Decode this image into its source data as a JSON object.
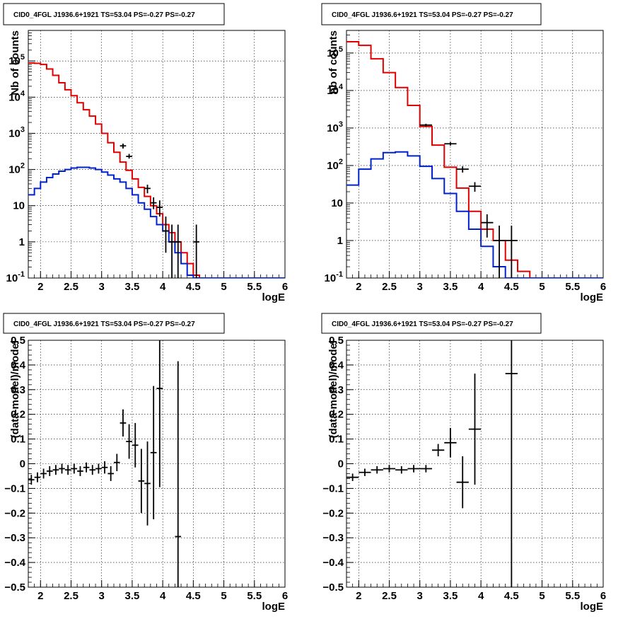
{
  "colors": {
    "data": "#000000",
    "model": "#e00000",
    "source": "#0022cc",
    "grid": "#000000"
  },
  "chart_data": [
    {
      "type": "line",
      "title": "CID0_4FGL J1936.6+1921 TS=53.04 PS=-0.27 PS=-0.27",
      "xlabel": "logE",
      "ylabel": "Nb of counts",
      "xlim": [
        1.8,
        6.0
      ],
      "ylim": [
        0.1,
        700000
      ],
      "yscale": "log",
      "grid": true,
      "xticks": [
        "2",
        "2.5",
        "3",
        "3.5",
        "4",
        "4.5",
        "5",
        "5.5",
        "6"
      ],
      "yticks": [
        "10^-1",
        "1",
        "10",
        "10^2",
        "10^3",
        "10^4",
        "10^5"
      ],
      "bin_edges": [
        1.8,
        1.9,
        2.0,
        2.1,
        2.2,
        2.3,
        2.4,
        2.5,
        2.6,
        2.7,
        2.8,
        2.9,
        3.0,
        3.1,
        3.2,
        3.3,
        3.4,
        3.5,
        3.6,
        3.7,
        3.8,
        3.9,
        4.0,
        4.1,
        4.2,
        4.3,
        4.4,
        4.5,
        4.6,
        4.7,
        4.8,
        4.9,
        5.0,
        5.1,
        5.2,
        5.3,
        5.4,
        5.5,
        5.6,
        5.7,
        5.8,
        5.9,
        6.0
      ],
      "series": [
        {
          "role": "model",
          "values": [
            88000,
            86000,
            80000,
            60000,
            40000,
            25000,
            16000,
            11000,
            7000,
            4500,
            3000,
            1800,
            1000,
            550,
            300,
            160,
            95,
            55,
            32,
            18,
            10,
            6,
            3,
            1.8,
            1,
            0.5,
            0.25,
            0.12,
            0.1,
            0.1,
            0.1,
            0.1,
            0.1,
            0.1,
            0.1,
            0.1,
            0.1,
            0.1,
            0.1,
            0.1,
            0.1,
            0.1
          ]
        },
        {
          "role": "source",
          "values": [
            20,
            30,
            45,
            60,
            75,
            90,
            100,
            110,
            115,
            115,
            110,
            100,
            85,
            70,
            55,
            45,
            30,
            20,
            12,
            8,
            5,
            3,
            2,
            1,
            0.5,
            0.25,
            0.12,
            0.1,
            0.1,
            0.1,
            0.1,
            0.1,
            0.1,
            0.1,
            0.1,
            0.1,
            0.1,
            0.1,
            0.1,
            0.1,
            0.1,
            0.1
          ]
        }
      ],
      "data_points": [
        {
          "x": 3.35,
          "y": 450,
          "ylo": 380,
          "yhi": 520
        },
        {
          "x": 3.45,
          "y": 230,
          "ylo": 200,
          "yhi": 270
        },
        {
          "x": 3.75,
          "y": 30,
          "ylo": 22,
          "yhi": 38
        },
        {
          "x": 3.85,
          "y": 12,
          "ylo": 8,
          "yhi": 17
        },
        {
          "x": 3.95,
          "y": 9,
          "ylo": 5,
          "yhi": 14
        },
        {
          "x": 4.05,
          "y": 2,
          "ylo": 0.5,
          "yhi": 5
        },
        {
          "x": 4.15,
          "y": 1,
          "ylo": 0.1,
          "yhi": 3
        },
        {
          "x": 4.25,
          "y": 1,
          "ylo": 0.1,
          "yhi": 3
        },
        {
          "x": 4.55,
          "y": 1,
          "ylo": 0.1,
          "yhi": 3
        }
      ]
    },
    {
      "type": "line",
      "title": "CID0_4FGL J1936.6+1921 TS=53.04 PS=-0.27 PS=-0.27",
      "xlabel": "logE",
      "ylabel": "nb of counts",
      "xlim": [
        1.8,
        6.0
      ],
      "ylim": [
        0.1,
        400000
      ],
      "yscale": "log",
      "grid": true,
      "xticks": [
        "2",
        "2.5",
        "3",
        "3.5",
        "4",
        "4.5",
        "5",
        "5.5",
        "6"
      ],
      "yticks": [
        "10^-1",
        "1",
        "10",
        "10^2",
        "10^3",
        "10^4",
        "10^5"
      ],
      "bin_edges": [
        1.8,
        2.0,
        2.2,
        2.4,
        2.6,
        2.8,
        3.0,
        3.2,
        3.4,
        3.6,
        3.8,
        4.0,
        4.2,
        4.4,
        4.6,
        4.8,
        5.0,
        5.2,
        5.4,
        5.6,
        5.8,
        6.0
      ],
      "series": [
        {
          "role": "model",
          "values": [
            200000,
            160000,
            70000,
            30000,
            12000,
            4000,
            1100,
            350,
            90,
            25,
            6,
            2,
            1,
            0.3,
            0.15,
            0.1,
            0.1,
            0.1,
            0.1,
            0.1,
            0.1
          ]
        },
        {
          "role": "source",
          "values": [
            30,
            80,
            150,
            220,
            230,
            180,
            95,
            45,
            18,
            6,
            2,
            0.7,
            0.2,
            0.1,
            0.1,
            0.1,
            0.1,
            0.1,
            0.1,
            0.1,
            0.1
          ]
        }
      ],
      "data_points": [
        {
          "x": 3.1,
          "y": 1200,
          "ylo": 1100,
          "yhi": 1300
        },
        {
          "x": 3.5,
          "y": 380,
          "ylo": 340,
          "yhi": 420
        },
        {
          "x": 3.7,
          "y": 80,
          "ylo": 65,
          "yhi": 95
        },
        {
          "x": 3.9,
          "y": 28,
          "ylo": 20,
          "yhi": 36
        },
        {
          "x": 4.1,
          "y": 3,
          "ylo": 1.2,
          "yhi": 5
        },
        {
          "x": 4.3,
          "y": 1,
          "ylo": 0.1,
          "yhi": 2.5
        },
        {
          "x": 4.5,
          "y": 1,
          "ylo": 0.1,
          "yhi": 2.5
        }
      ]
    },
    {
      "type": "scatter",
      "title": "CID0_4FGL J1936.6+1921 TS=53.04 PS=-0.27 PS=-0.27",
      "xlabel": "logE",
      "ylabel": "(data-model)/model",
      "xlim": [
        1.8,
        6.0
      ],
      "ylim": [
        -0.5,
        0.5
      ],
      "grid": true,
      "xticks": [
        "2",
        "2.5",
        "3",
        "3.5",
        "4",
        "4.5",
        "5",
        "5.5",
        "6"
      ],
      "yticks": [
        "-0.5",
        "-0.4",
        "-0.3",
        "-0.2",
        "-0.1",
        "0",
        "0.1",
        "0.2",
        "0.3",
        "0.4",
        "0.5"
      ],
      "points": [
        {
          "x": 1.85,
          "y": -0.065,
          "err": 0.02
        },
        {
          "x": 1.95,
          "y": -0.055,
          "err": 0.02
        },
        {
          "x": 2.05,
          "y": -0.04,
          "err": 0.02
        },
        {
          "x": 2.15,
          "y": -0.03,
          "err": 0.02
        },
        {
          "x": 2.25,
          "y": -0.025,
          "err": 0.02
        },
        {
          "x": 2.35,
          "y": -0.02,
          "err": 0.02
        },
        {
          "x": 2.45,
          "y": -0.025,
          "err": 0.02
        },
        {
          "x": 2.55,
          "y": -0.02,
          "err": 0.02
        },
        {
          "x": 2.65,
          "y": -0.03,
          "err": 0.02
        },
        {
          "x": 2.75,
          "y": -0.015,
          "err": 0.02
        },
        {
          "x": 2.85,
          "y": -0.025,
          "err": 0.02
        },
        {
          "x": 2.95,
          "y": -0.02,
          "err": 0.02
        },
        {
          "x": 3.05,
          "y": -0.015,
          "err": 0.025
        },
        {
          "x": 3.15,
          "y": -0.04,
          "err": 0.03
        },
        {
          "x": 3.25,
          "y": 0.005,
          "err": 0.035
        },
        {
          "x": 3.35,
          "y": 0.165,
          "err": 0.055
        },
        {
          "x": 3.45,
          "y": 0.09,
          "err": 0.07
        },
        {
          "x": 3.55,
          "y": 0.075,
          "err": 0.09
        },
        {
          "x": 3.65,
          "y": -0.07,
          "err": 0.13
        },
        {
          "x": 3.75,
          "y": -0.08,
          "err": 0.17
        },
        {
          "x": 3.85,
          "y": 0.045,
          "err": 0.27
        },
        {
          "x": 3.95,
          "y": 0.305,
          "err": 0.4
        },
        {
          "x": 4.25,
          "y": -0.295,
          "err": 0.71
        }
      ]
    },
    {
      "type": "scatter",
      "title": "CID0_4FGL J1936.6+1921 TS=53.04 PS=-0.27 PS=-0.27",
      "xlabel": "logE",
      "ylabel": "(data-model)/model",
      "xlim": [
        1.8,
        6.0
      ],
      "ylim": [
        -0.5,
        0.5
      ],
      "grid": true,
      "xticks": [
        "2",
        "2.5",
        "3",
        "3.5",
        "4",
        "4.5",
        "5",
        "5.5",
        "6"
      ],
      "yticks": [
        "-0.5",
        "-0.4",
        "-0.3",
        "-0.2",
        "-0.1",
        "0",
        "0.1",
        "0.2",
        "0.3",
        "0.4",
        "0.5"
      ],
      "points": [
        {
          "x": 1.9,
          "y": -0.055,
          "err": 0.015
        },
        {
          "x": 2.1,
          "y": -0.035,
          "err": 0.015
        },
        {
          "x": 2.3,
          "y": -0.025,
          "err": 0.015
        },
        {
          "x": 2.5,
          "y": -0.02,
          "err": 0.015
        },
        {
          "x": 2.7,
          "y": -0.025,
          "err": 0.015
        },
        {
          "x": 2.9,
          "y": -0.02,
          "err": 0.015
        },
        {
          "x": 3.1,
          "y": -0.02,
          "err": 0.015
        },
        {
          "x": 3.3,
          "y": 0.055,
          "err": 0.025
        },
        {
          "x": 3.5,
          "y": 0.085,
          "err": 0.06
        },
        {
          "x": 3.7,
          "y": -0.075,
          "err": 0.105
        },
        {
          "x": 3.9,
          "y": 0.14,
          "err": 0.225
        },
        {
          "x": 4.5,
          "y": 0.365,
          "err": 0.9
        }
      ]
    }
  ]
}
